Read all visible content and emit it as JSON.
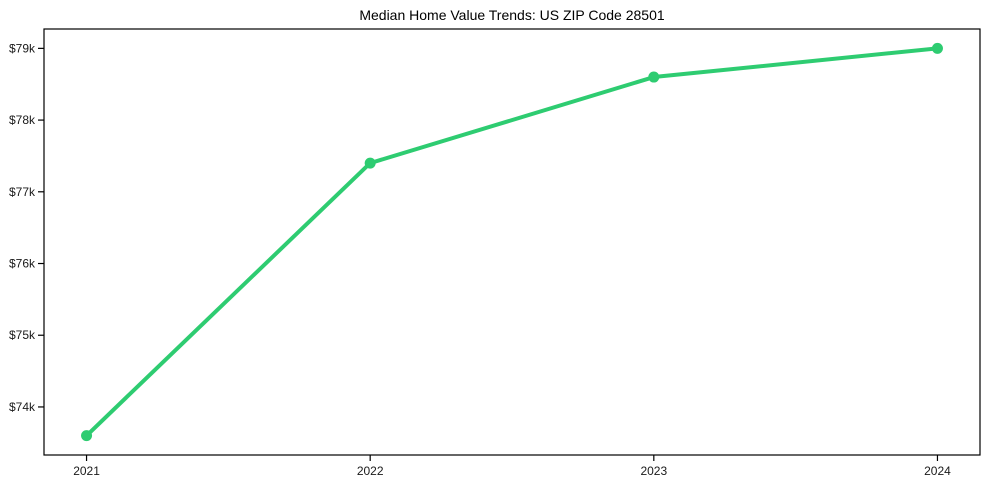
{
  "chart": {
    "title": "Median Home Value Trends: US ZIP Code 28501"
  },
  "chart_data": {
    "type": "line",
    "title": "Median Home Value Trends: US ZIP Code 28501",
    "x": [
      2021,
      2022,
      2023,
      2024
    ],
    "series": [
      {
        "name": "Median Home Value",
        "values": [
          73600,
          77400,
          78600,
          79000
        ]
      }
    ],
    "xtick_labels": [
      "2021",
      "2022",
      "2023",
      "2024"
    ],
    "ytick_values": [
      74000,
      75000,
      76000,
      77000,
      78000,
      79000
    ],
    "ytick_labels": [
      "$74k",
      "$75k",
      "$76k",
      "$77k",
      "$78k",
      "$79k"
    ],
    "xlim": [
      2020.85,
      2024.15
    ],
    "ylim": [
      73330,
      79270
    ],
    "xlabel": "",
    "ylabel": "",
    "grid": false,
    "legend": "none",
    "line_color": "#2ecc71",
    "marker": "circle",
    "axis_color": "#000000",
    "tick_text_color": "#1a1a1a"
  }
}
